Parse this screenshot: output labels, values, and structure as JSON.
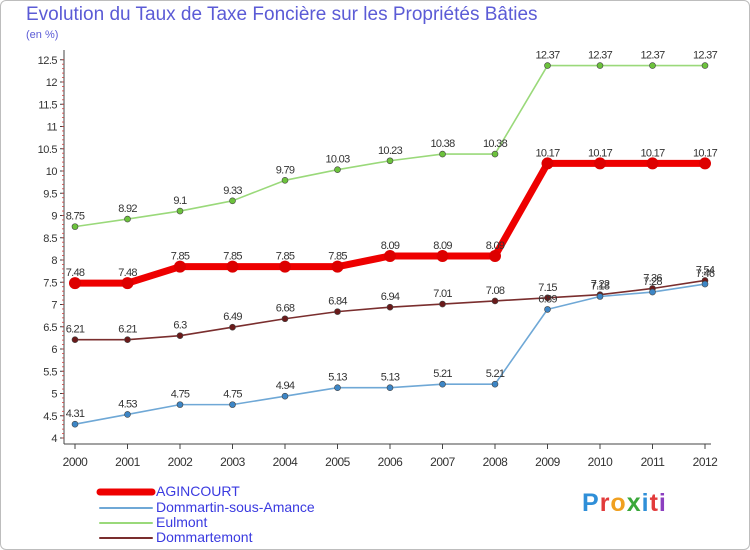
{
  "title": "Evolution du Taux de Taxe Foncière sur les Propriétés Bâties",
  "unit_label": "(en %)",
  "logo": {
    "text": "Proxiti",
    "colors": [
      "#2f8fd8",
      "#e23b3b",
      "#f0a020",
      "#3aa83a",
      "#2f8fd8",
      "#e23b3b",
      "#8c3fc0"
    ]
  },
  "chart_data": {
    "type": "line",
    "x": [
      "2000",
      "2001",
      "2002",
      "2003",
      "2004",
      "2005",
      "2006",
      "2007",
      "2008",
      "2009",
      "2010",
      "2011",
      "2012"
    ],
    "y_ticks": [
      "4",
      "4.5",
      "5",
      "5.5",
      "6",
      "6.5",
      "7",
      "7.5",
      "8",
      "8.5",
      "9",
      "9.5",
      "10",
      "10.5",
      "11",
      "11.5",
      "12",
      "12.5"
    ],
    "ylim": [
      4,
      12.5
    ],
    "grid": false,
    "legend_position": "bottom-left",
    "series": [
      {
        "name": "Eulmont",
        "color": "#9ad97a",
        "marker": "#6cc23c",
        "values": [
          8.75,
          8.92,
          9.1,
          9.33,
          9.79,
          10.03,
          10.23,
          10.38,
          10.38,
          12.37,
          12.37,
          12.37,
          12.37
        ],
        "labels": [
          "8.75",
          "8.92",
          "9.1",
          "9.33",
          "9.79",
          "10.03",
          "10.23",
          "10.38",
          "10.38",
          "12.37",
          "12.37",
          "12.37",
          "12.37"
        ]
      },
      {
        "name": "Dommartemont",
        "color": "#7a2e2e",
        "marker": "#6a1a1a",
        "values": [
          6.21,
          6.21,
          6.3,
          6.49,
          6.68,
          6.84,
          6.94,
          7.01,
          7.08,
          7.15,
          7.22,
          7.36,
          7.54
        ],
        "labels": [
          "6.21",
          "6.21",
          "6.3",
          "6.49",
          "6.68",
          "6.84",
          "6.94",
          "7.01",
          "7.08",
          "7.15",
          "7.22",
          "7.36",
          "7.54"
        ]
      },
      {
        "name": "Dommartin-sous-Amance",
        "color": "#6fa8d6",
        "marker": "#3d86c6",
        "values": [
          4.31,
          4.53,
          4.75,
          4.75,
          4.94,
          5.13,
          5.13,
          5.21,
          5.21,
          6.89,
          7.18,
          7.28,
          7.46
        ],
        "labels": [
          "4.31",
          "4.53",
          "4.75",
          "4.75",
          "4.94",
          "5.13",
          "5.13",
          "5.21",
          "5.21",
          "6.89",
          "7.18",
          "7.28",
          "7.46"
        ]
      },
      {
        "name": "AGINCOURT",
        "color": "#ee0000",
        "marker": "#dd0000",
        "values": [
          7.48,
          7.48,
          7.85,
          7.85,
          7.85,
          7.85,
          8.09,
          8.09,
          8.09,
          10.17,
          10.17,
          10.17,
          10.17
        ],
        "labels": [
          "7.48",
          "7.48",
          "7.85",
          "7.85",
          "7.85",
          "7.85",
          "8.09",
          "8.09",
          "8.09",
          "10.17",
          "10.17",
          "10.17",
          "10.17"
        ]
      }
    ],
    "legend_order": [
      "AGINCOURT",
      "Dommartin-sous-Amance",
      "Eulmont",
      "Dommartemont"
    ]
  }
}
